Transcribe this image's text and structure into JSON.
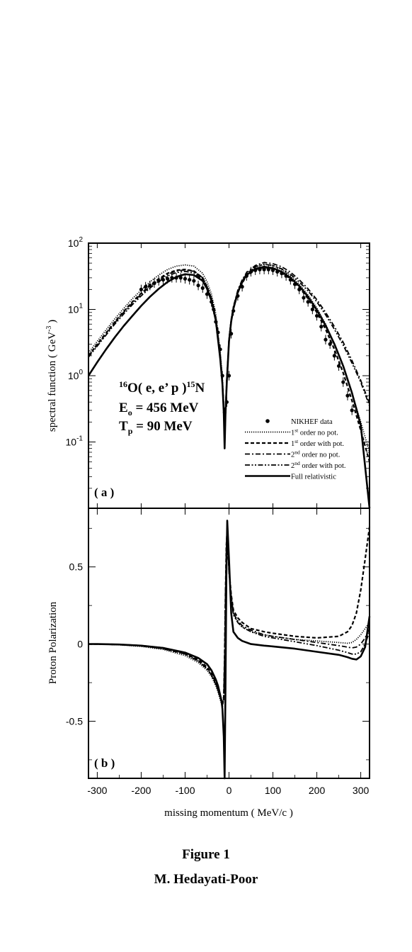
{
  "figure": {
    "caption": "Figure 1",
    "author": "M. Hedayati-Poor"
  },
  "legend": [
    {
      "label": "NIKHEF data",
      "sup": "",
      "rest": "",
      "style": "dot"
    },
    {
      "label": "1",
      "sup": "st",
      "rest": " order no pot.",
      "style": "dotted"
    },
    {
      "label": "1",
      "sup": "st",
      "rest": " order with pot.",
      "style": "dashed"
    },
    {
      "label": "2",
      "sup": "nd",
      "rest": " order no pot.",
      "style": "dashdot"
    },
    {
      "label": "2",
      "sup": "nd",
      "rest": " order with pot.",
      "style": "dashdotdot"
    },
    {
      "label": "Full relativistic",
      "sup": "",
      "rest": "",
      "style": "solid"
    }
  ],
  "annotation": {
    "reaction": {
      "pre": "16",
      "a": "O( e, e’ p )",
      "post": "15",
      "b": "N"
    },
    "energy": {
      "sym": "E",
      "sub": "o",
      "rest": " = 456 MeV"
    },
    "tp": {
      "sym": "T",
      "sub": "p",
      "rest": " = 90 MeV"
    }
  },
  "chart_data": [
    {
      "type": "line",
      "panel": "( a )",
      "ylabel": "spectral function  ( GeV",
      "ylabel_sup": "-3",
      "ylabel_end": " )",
      "yscale": "log",
      "ylim": [
        0.01,
        100
      ],
      "xlim": [
        -320,
        320
      ],
      "yticks": [
        {
          "v": 100,
          "base": "10",
          "exp": "2"
        },
        {
          "v": 10,
          "base": "10",
          "exp": "1"
        },
        {
          "v": 1,
          "base": "10",
          "exp": "0"
        },
        {
          "v": 0.1,
          "base": "10",
          "exp": "-1"
        }
      ],
      "x": [
        -320,
        -300,
        -280,
        -260,
        -240,
        -220,
        -200,
        -180,
        -160,
        -140,
        -120,
        -100,
        -80,
        -60,
        -50,
        -40,
        -30,
        -20,
        -15,
        -12,
        -10,
        -8,
        -5,
        0,
        5,
        10,
        20,
        30,
        40,
        60,
        80,
        100,
        120,
        140,
        160,
        180,
        200,
        220,
        240,
        260,
        280,
        300,
        320
      ],
      "series": [
        {
          "style": "dotted",
          "values": [
            2.2,
            3.3,
            4.9,
            7.2,
            10.3,
            14.5,
            19.5,
            26,
            33,
            40,
            45,
            47,
            45,
            35,
            26,
            17,
            8.5,
            2.3,
            0.9,
            0.35,
            0.12,
            0.3,
            0.9,
            3.6,
            7.2,
            11,
            19,
            27,
            34,
            44,
            48,
            46,
            40,
            32,
            24,
            16.5,
            10.5,
            6,
            3,
            1.4,
            0.55,
            0.2,
            0.07
          ]
        },
        {
          "style": "dashed",
          "values": [
            2.0,
            3.0,
            4.4,
            6.5,
            9.3,
            13,
            17.5,
            23,
            29,
            35,
            39,
            40,
            38,
            30,
            22,
            14.5,
            7.2,
            2.0,
            0.8,
            0.3,
            0.1,
            0.28,
            0.85,
            3.4,
            6.8,
            10.5,
            18,
            25,
            32,
            40,
            43,
            41,
            36,
            29,
            21.5,
            14.5,
            9,
            5,
            2.5,
            1.1,
            0.42,
            0.15,
            0.05
          ]
        },
        {
          "style": "dashdot",
          "values": [
            2.0,
            2.9,
            4.3,
            6.3,
            9,
            12.5,
            17,
            22,
            28,
            34,
            38,
            39.5,
            37.5,
            30,
            22,
            14.5,
            7.2,
            2.0,
            0.8,
            0.3,
            0.1,
            0.28,
            0.85,
            3.5,
            7,
            11,
            19.5,
            28,
            36,
            46,
            51,
            49,
            44,
            36.5,
            28,
            20.5,
            14,
            9,
            5.5,
            3.2,
            1.7,
            0.85,
            0.38
          ]
        },
        {
          "style": "dashdotdot",
          "values": [
            1.9,
            2.8,
            4.1,
            6.0,
            8.5,
            11.8,
            16,
            21,
            26.5,
            32,
            36,
            37.5,
            35.5,
            28.5,
            21,
            14,
            7,
            1.9,
            0.78,
            0.29,
            0.1,
            0.27,
            0.82,
            3.3,
            6.7,
            10.5,
            18.5,
            27,
            34,
            44,
            48,
            46,
            41,
            34,
            26,
            19,
            13,
            8.3,
            5,
            2.9,
            1.55,
            0.8,
            0.35
          ]
        },
        {
          "style": "solid",
          "values": [
            1.0,
            1.6,
            2.5,
            3.8,
            5.6,
            8,
            11.3,
            15.5,
            20.5,
            26,
            31,
            34,
            33,
            27,
            20.5,
            13.5,
            6.8,
            1.8,
            0.75,
            0.28,
            0.08,
            0.26,
            0.8,
            3.3,
            6.6,
            10.2,
            18,
            26,
            33,
            41,
            44,
            42,
            37,
            30,
            22.5,
            15.5,
            9.8,
            5.7,
            3,
            1.4,
            0.55,
            0.18,
            0.01
          ]
        }
      ],
      "data_points": {
        "name": "NIKHEF data",
        "x": [
          -200,
          -190,
          -180,
          -170,
          -160,
          -150,
          -140,
          -130,
          -120,
          -110,
          -100,
          -90,
          -80,
          -70,
          -60,
          -50,
          -40,
          -35,
          -30,
          -25,
          -20,
          -15,
          -10,
          -5,
          0,
          5,
          10,
          20,
          30,
          40,
          50,
          60,
          70,
          80,
          90,
          100,
          110,
          120,
          130,
          140,
          150,
          160,
          170,
          180,
          190,
          200,
          210,
          220,
          230,
          240,
          250,
          260,
          270,
          280
        ],
        "y": [
          20,
          22,
          23,
          25,
          27,
          28,
          29,
          30,
          30,
          30,
          29,
          28,
          27,
          23,
          21,
          17,
          13,
          10,
          6.5,
          4.5,
          2.5,
          1.0,
          0.28,
          0.4,
          1.0,
          4.3,
          9.5,
          16,
          22,
          32,
          37,
          39,
          40,
          40,
          40,
          39,
          37,
          35,
          32,
          28,
          24,
          20,
          15,
          13,
          10,
          8,
          5.5,
          3.5,
          3,
          2,
          1.4,
          0.8,
          0.5,
          0.3
        ]
      }
    },
    {
      "type": "line",
      "panel": "( b )",
      "ylabel": "Proton Polarization",
      "xlabel": "missing momentum ( MeV/c )",
      "ylim": [
        -0.87,
        0.88
      ],
      "xlim": [
        -320,
        320
      ],
      "yticks": [
        {
          "v": 0.5,
          "label": "0.5"
        },
        {
          "v": 0,
          "label": "0"
        },
        {
          "v": -0.5,
          "label": "-0.5"
        }
      ],
      "xticks": [
        {
          "v": -300,
          "label": "-300"
        },
        {
          "v": -200,
          "label": "-200"
        },
        {
          "v": -100,
          "label": "-100"
        },
        {
          "v": 0,
          "label": "0"
        },
        {
          "v": 100,
          "label": "100"
        },
        {
          "v": 200,
          "label": "200"
        },
        {
          "v": 300,
          "label": "300"
        }
      ],
      "x": [
        -320,
        -300,
        -250,
        -200,
        -150,
        -100,
        -70,
        -50,
        -40,
        -30,
        -25,
        -20,
        -17,
        -15,
        -12,
        -10,
        -8,
        -6,
        -4,
        0,
        5,
        10,
        20,
        30,
        50,
        80,
        100,
        150,
        200,
        250,
        270,
        280,
        290,
        300,
        310,
        320
      ],
      "series": [
        {
          "style": "dotted",
          "values": [
            0.0,
            0.0,
            -0.005,
            -0.015,
            -0.035,
            -0.075,
            -0.12,
            -0.17,
            -0.21,
            -0.27,
            -0.31,
            -0.36,
            -0.39,
            -0.41,
            -0.36,
            -0.1,
            0.3,
            0.62,
            0.73,
            0.47,
            0.3,
            0.2,
            0.14,
            0.11,
            0.08,
            0.06,
            0.05,
            0.03,
            0.02,
            0.01,
            0.005,
            0.01,
            0.03,
            0.06,
            0.1,
            0.14
          ]
        },
        {
          "style": "dashed",
          "values": [
            0.0,
            0.0,
            -0.003,
            -0.01,
            -0.025,
            -0.06,
            -0.1,
            -0.15,
            -0.19,
            -0.25,
            -0.29,
            -0.34,
            -0.37,
            -0.39,
            -0.34,
            -0.08,
            0.32,
            0.64,
            0.75,
            0.48,
            0.32,
            0.22,
            0.17,
            0.14,
            0.1,
            0.08,
            0.07,
            0.05,
            0.04,
            0.05,
            0.08,
            0.12,
            0.2,
            0.35,
            0.55,
            0.76
          ]
        },
        {
          "style": "dashdot",
          "values": [
            0.0,
            0.0,
            -0.004,
            -0.012,
            -0.03,
            -0.065,
            -0.11,
            -0.16,
            -0.2,
            -0.26,
            -0.3,
            -0.35,
            -0.38,
            -0.4,
            -0.35,
            -0.09,
            0.31,
            0.63,
            0.74,
            0.47,
            0.31,
            0.2,
            0.15,
            0.12,
            0.09,
            0.06,
            0.05,
            0.03,
            0.01,
            -0.01,
            -0.02,
            -0.025,
            -0.02,
            0.0,
            0.04,
            0.1
          ]
        },
        {
          "style": "dashdotdot",
          "values": [
            0.0,
            0.0,
            -0.004,
            -0.012,
            -0.03,
            -0.065,
            -0.11,
            -0.16,
            -0.2,
            -0.26,
            -0.3,
            -0.35,
            -0.38,
            -0.4,
            -0.35,
            -0.09,
            0.31,
            0.63,
            0.74,
            0.47,
            0.3,
            0.19,
            0.14,
            0.11,
            0.08,
            0.05,
            0.04,
            0.015,
            -0.01,
            -0.04,
            -0.055,
            -0.065,
            -0.065,
            -0.05,
            0.0,
            0.08
          ]
        },
        {
          "style": "solid",
          "values": [
            0.0,
            0.0,
            -0.003,
            -0.01,
            -0.025,
            -0.055,
            -0.09,
            -0.13,
            -0.17,
            -0.23,
            -0.27,
            -0.33,
            -0.37,
            -0.42,
            -0.6,
            -0.87,
            -0.3,
            0.45,
            0.8,
            0.55,
            0.2,
            0.08,
            0.04,
            0.02,
            0.0,
            -0.01,
            -0.015,
            -0.03,
            -0.05,
            -0.07,
            -0.085,
            -0.095,
            -0.1,
            -0.08,
            -0.02,
            0.18
          ]
        }
      ]
    }
  ]
}
